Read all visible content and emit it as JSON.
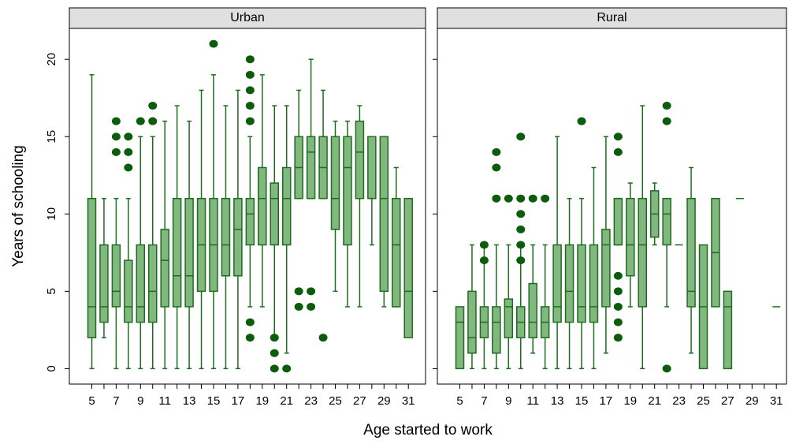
{
  "xlabel": "Age started to work",
  "chart_data": [
    {
      "type": "box",
      "title": "Urban",
      "ylabel": "Years of schooling",
      "color": "#80b880",
      "edge_color": "#1f6b1f",
      "outlier_color": "#0b5c0b",
      "ylim": [
        -1,
        22
      ],
      "yticks": [
        0,
        5,
        10,
        15,
        20
      ],
      "categories": [
        5,
        null,
        7,
        null,
        9,
        null,
        11,
        null,
        13,
        null,
        15,
        null,
        17,
        null,
        19,
        null,
        21,
        null,
        23,
        null,
        25,
        null,
        27,
        null,
        29,
        null,
        31
      ],
      "boxes": [
        {
          "whislo": 0,
          "q1": 2,
          "median": 4,
          "q3": 11,
          "whishi": 19,
          "outliers": []
        },
        {
          "whislo": 2,
          "q1": 3,
          "median": 4,
          "q3": 8,
          "whishi": 11,
          "outliers": []
        },
        {
          "whislo": 0,
          "q1": 4,
          "median": 5,
          "q3": 8,
          "whishi": 11,
          "outliers": [
            14,
            15,
            16
          ]
        },
        {
          "whislo": 0,
          "q1": 3,
          "median": 4,
          "q3": 7,
          "whishi": 11,
          "outliers": [
            13,
            14,
            15
          ]
        },
        {
          "whislo": 0,
          "q1": 3,
          "median": 4,
          "q3": 8,
          "whishi": 15,
          "outliers": [
            16
          ]
        },
        {
          "whislo": 0,
          "q1": 3,
          "median": 5,
          "q3": 8,
          "whishi": 15,
          "outliers": [
            16,
            17
          ]
        },
        {
          "whislo": 0,
          "q1": 4,
          "median": 7,
          "q3": 9,
          "whishi": 16,
          "outliers": []
        },
        {
          "whislo": 0,
          "q1": 4,
          "median": 6,
          "q3": 11,
          "whishi": 17,
          "outliers": []
        },
        {
          "whislo": 0,
          "q1": 4,
          "median": 6,
          "q3": 11,
          "whishi": 16,
          "outliers": []
        },
        {
          "whislo": 0,
          "q1": 5,
          "median": 8,
          "q3": 11,
          "whishi": 18,
          "outliers": []
        },
        {
          "whislo": 0,
          "q1": 5,
          "median": 8,
          "q3": 11,
          "whishi": 19,
          "outliers": [
            21
          ]
        },
        {
          "whislo": 0,
          "q1": 6,
          "median": 8,
          "q3": 11,
          "whishi": 17,
          "outliers": []
        },
        {
          "whislo": 0,
          "q1": 6,
          "median": 9,
          "q3": 11,
          "whishi": 18,
          "outliers": []
        },
        {
          "whislo": 4,
          "q1": 8,
          "median": 10,
          "q3": 11,
          "whishi": 15,
          "outliers": [
            2,
            3,
            16,
            17,
            18,
            19,
            20
          ]
        },
        {
          "whislo": 4,
          "q1": 8,
          "median": 11,
          "q3": 13,
          "whishi": 19,
          "outliers": []
        },
        {
          "whislo": 2,
          "q1": 8,
          "median": 11,
          "q3": 12,
          "whishi": 17,
          "outliers": [
            0,
            1,
            2
          ]
        },
        {
          "whislo": 1,
          "q1": 8,
          "median": 11,
          "q3": 13,
          "whishi": 17,
          "outliers": [
            0
          ]
        },
        {
          "whislo": 11,
          "q1": 11,
          "median": 13,
          "q3": 15,
          "whishi": 18,
          "outliers": [
            4,
            5
          ]
        },
        {
          "whislo": 11,
          "q1": 11,
          "median": 14,
          "q3": 15,
          "whishi": 20,
          "outliers": [
            4,
            5
          ]
        },
        {
          "whislo": 11,
          "q1": 11,
          "median": 13,
          "q3": 15,
          "whishi": 18,
          "outliers": [
            2
          ]
        },
        {
          "whislo": 5,
          "q1": 9,
          "median": 11,
          "q3": 15,
          "whishi": 16,
          "outliers": []
        },
        {
          "whislo": 4,
          "q1": 8,
          "median": 13,
          "q3": 15,
          "whishi": 16,
          "outliers": []
        },
        {
          "whislo": 4,
          "q1": 11,
          "median": 14,
          "q3": 16,
          "whishi": 17,
          "outliers": []
        },
        {
          "whislo": 8,
          "q1": 11,
          "median": 11,
          "q3": 15,
          "whishi": 15,
          "outliers": []
        },
        {
          "whislo": 4,
          "q1": 5,
          "median": 11,
          "q3": 15,
          "whishi": 15,
          "outliers": []
        },
        {
          "whislo": 4,
          "q1": 4,
          "median": 8,
          "q3": 11,
          "whishi": 13,
          "outliers": []
        },
        {
          "q1": 2,
          "median": 5,
          "q3": 11,
          "outliers": []
        }
      ]
    },
    {
      "type": "box",
      "title": "Rural",
      "color": "#80b880",
      "edge_color": "#1f6b1f",
      "outlier_color": "#0b5c0b",
      "ylim": [
        -1,
        22
      ],
      "yticks": [
        0,
        5,
        10,
        15,
        20
      ],
      "categories": [
        5,
        null,
        7,
        null,
        9,
        null,
        11,
        null,
        13,
        null,
        15,
        null,
        17,
        null,
        19,
        null,
        21,
        null,
        23,
        null,
        25,
        null,
        27,
        null,
        29,
        null,
        31
      ],
      "boxes": [
        {
          "q1": 0,
          "median": 3,
          "q3": 4,
          "outliers": []
        },
        {
          "whislo": 0,
          "q1": 1,
          "median": 2,
          "q3": 5,
          "whishi": 8,
          "outliers": []
        },
        {
          "whislo": 0,
          "q1": 2,
          "median": 3,
          "q3": 4,
          "whishi": 8,
          "outliers": [
            7,
            8
          ]
        },
        {
          "whislo": 0,
          "q1": 1,
          "median": 3,
          "q3": 4,
          "whishi": 8,
          "outliers": [
            11,
            13,
            14
          ]
        },
        {
          "whislo": 0,
          "q1": 2,
          "median": 4,
          "q3": 4.5,
          "whishi": 8,
          "outliers": [
            11
          ]
        },
        {
          "whislo": 0,
          "q1": 2,
          "median": 3,
          "q3": 4,
          "whishi": 8,
          "outliers": [
            7,
            8,
            9,
            10,
            11,
            15
          ]
        },
        {
          "whislo": 1,
          "q1": 2,
          "median": 3,
          "q3": 5.5,
          "whishi": 8,
          "outliers": [
            11
          ]
        },
        {
          "whislo": 0,
          "q1": 2,
          "median": 3,
          "q3": 4,
          "whishi": 8,
          "outliers": [
            11
          ]
        },
        {
          "whislo": 0,
          "q1": 3,
          "median": 4,
          "q3": 8,
          "whishi": 15,
          "outliers": []
        },
        {
          "whislo": 0,
          "q1": 3,
          "median": 5,
          "q3": 8,
          "whishi": 11,
          "outliers": []
        },
        {
          "whislo": 0,
          "q1": 3,
          "median": 4,
          "q3": 8,
          "whishi": 11,
          "outliers": [
            16
          ]
        },
        {
          "whislo": 0,
          "q1": 3,
          "median": 4,
          "q3": 8,
          "whishi": 13,
          "outliers": []
        },
        {
          "whislo": 1,
          "q1": 4,
          "median": 8,
          "q3": 9,
          "whishi": 15,
          "outliers": []
        },
        {
          "whislo": 8,
          "q1": 8,
          "median": 11,
          "q3": 11,
          "whishi": 11,
          "outliers": [
            2,
            3,
            4,
            5,
            6,
            14,
            15
          ]
        },
        {
          "whislo": 4,
          "q1": 6,
          "median": 8,
          "q3": 11,
          "whishi": 12,
          "outliers": []
        },
        {
          "whislo": 0,
          "q1": 4,
          "median": 8,
          "q3": 11,
          "whishi": 17,
          "outliers": []
        },
        {
          "whislo": 8,
          "q1": 8.5,
          "median": 10,
          "q3": 11.5,
          "whishi": 12,
          "outliers": []
        },
        {
          "whislo": 4,
          "q1": 8,
          "median": 10,
          "q3": 11,
          "whishi": 11,
          "outliers": [
            0,
            16,
            17
          ]
        },
        {
          "median": 8,
          "outliers": []
        },
        {
          "whislo": 1,
          "q1": 4,
          "median": 5,
          "q3": 11,
          "whishi": 13,
          "outliers": []
        },
        {
          "q1": 0,
          "median": 4,
          "q3": 8,
          "outliers": []
        },
        {
          "q1": 4,
          "median": 7.5,
          "q3": 11,
          "outliers": []
        },
        {
          "q1": 0,
          "median": 4,
          "q3": 5,
          "outliers": []
        },
        {
          "median": 11,
          "outliers": []
        },
        null,
        null,
        {
          "median": 4,
          "outliers": []
        }
      ]
    }
  ]
}
